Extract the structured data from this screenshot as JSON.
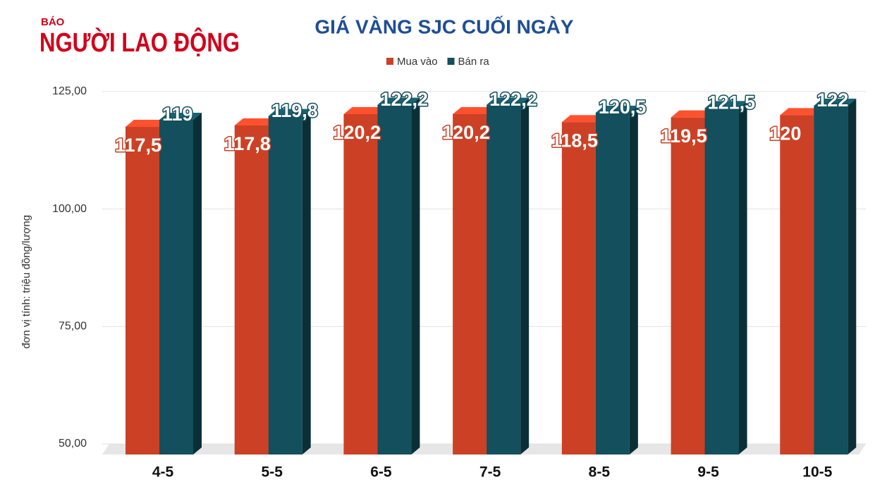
{
  "logo": {
    "small": "BÁO",
    "name": "NGƯỜI LAO ĐỘNG"
  },
  "chart_data": {
    "type": "bar3d",
    "title": "GIÁ VÀNG SJC CUỐI NGÀY",
    "y_label": "đơn vị tính: triệu đồng/lượng",
    "categories": [
      "4-5",
      "5-5",
      "6-5",
      "7-5",
      "8-5",
      "9-5",
      "10-5"
    ],
    "series": [
      {
        "name": "Mua vào",
        "color": "#cc4125",
        "values": [
          117.5,
          117.8,
          120.2,
          120.2,
          118.5,
          119.5,
          120
        ],
        "value_labels": [
          "117,5",
          "117,8",
          "120,2",
          "120,2",
          "118,5",
          "119,5",
          "120"
        ]
      },
      {
        "name": "Bán ra",
        "color": "#134f5c",
        "values": [
          119,
          119.8,
          122.2,
          122.2,
          120.5,
          121.5,
          122
        ],
        "value_labels": [
          "119",
          "119,8",
          "122,2",
          "122,2",
          "120,5",
          "121,5",
          "122"
        ]
      }
    ],
    "ylim": [
      50,
      125
    ],
    "yticks": [
      {
        "value": 50,
        "label": "50,00"
      },
      {
        "value": 75,
        "label": "75,00"
      },
      {
        "value": 100,
        "label": "100,00"
      },
      {
        "value": 125,
        "label": "125,00"
      }
    ],
    "grid": true,
    "legend": "top"
  }
}
